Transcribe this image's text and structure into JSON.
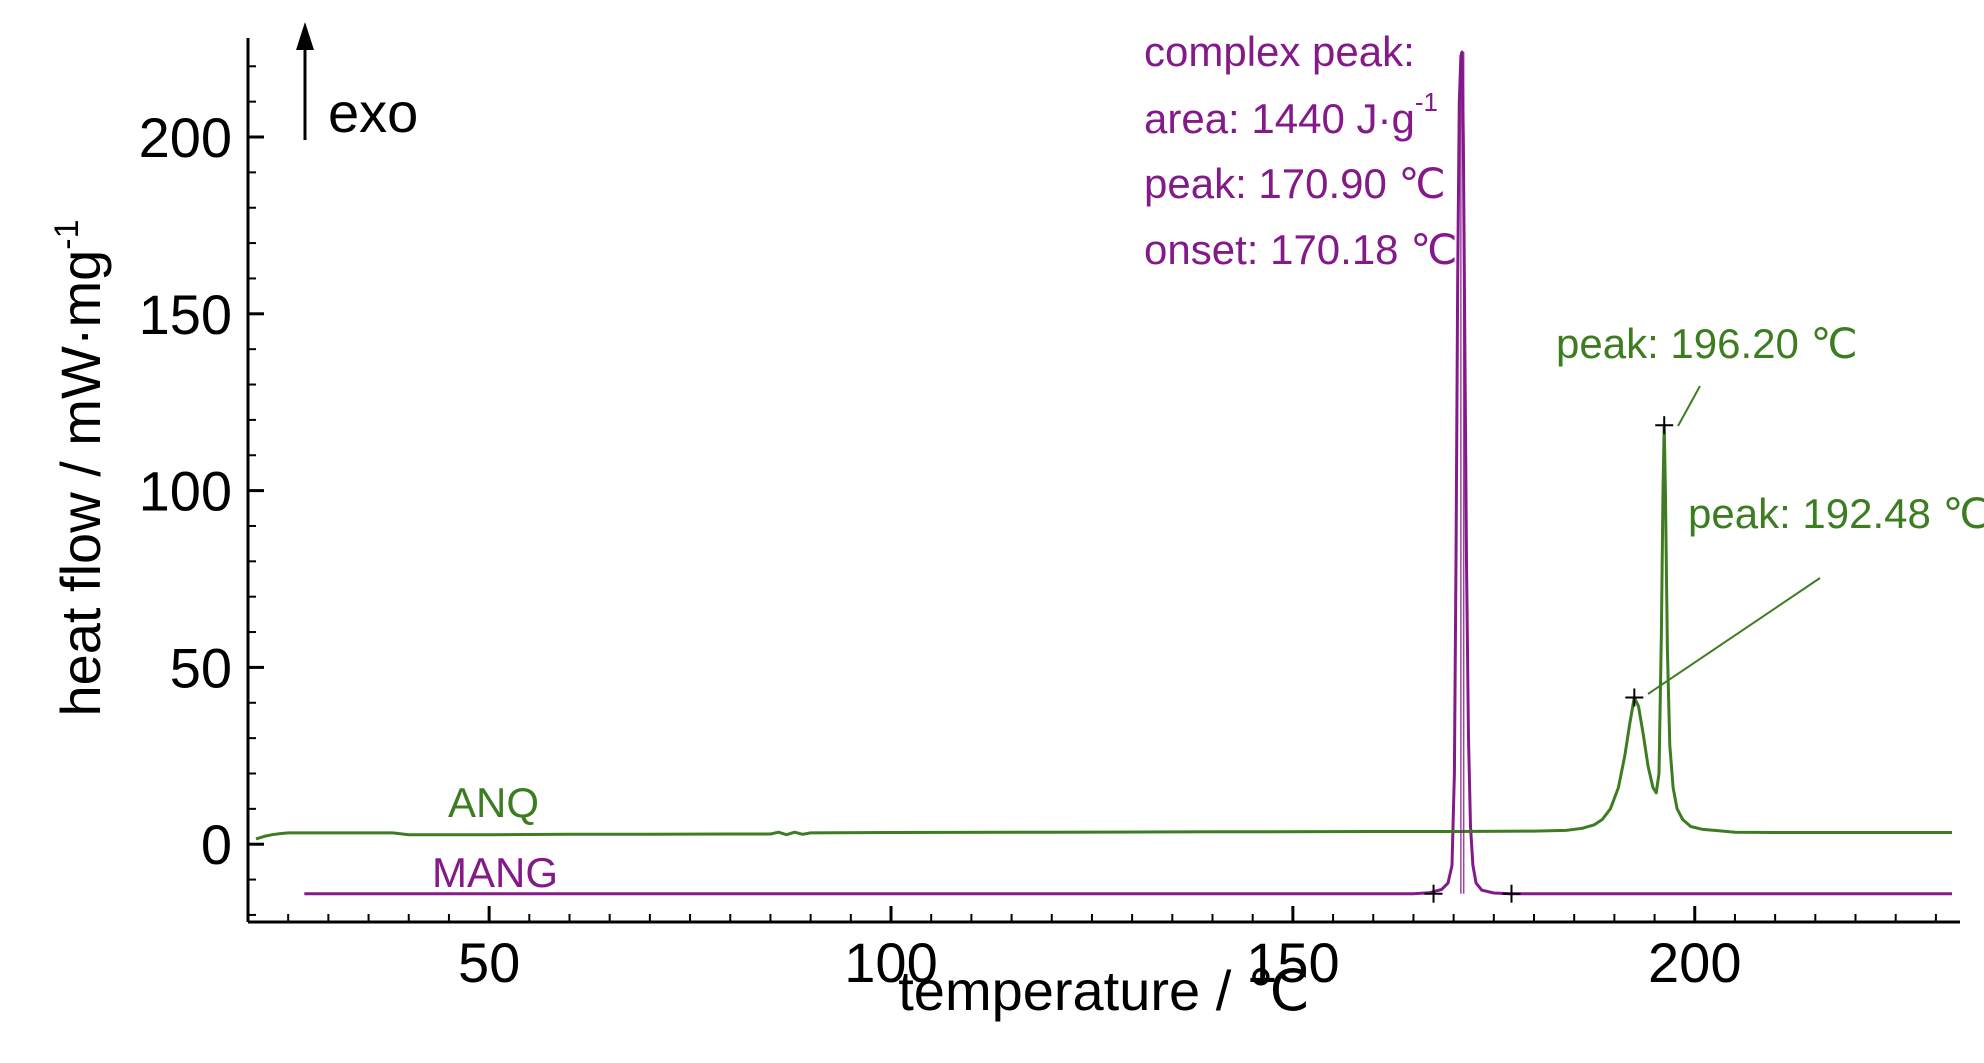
{
  "chart_data": {
    "type": "line",
    "xlabel": "temperature / ℃",
    "ylabel": "heat flow / mW·mg",
    "ylabel_superscript": "-1",
    "xlim": [
      20,
      233
    ],
    "ylim": [
      -22,
      228
    ],
    "x_ticks": [
      50,
      100,
      150,
      200
    ],
    "y_ticks": [
      0,
      50,
      100,
      150,
      200
    ],
    "x_tick_labels": [
      "50",
      "100",
      "150",
      "200"
    ],
    "y_tick_labels": [
      "0",
      "50",
      "100",
      "150",
      "200"
    ],
    "exo_label": "exo",
    "colors": {
      "ANQ": "#3d7d22",
      "MANG": "#84198a",
      "axis": "#000000"
    },
    "series": [
      {
        "name": "ANQ",
        "label": "ANQ",
        "color": "#3d7d22",
        "points": [
          [
            21.0,
            1.5
          ],
          [
            22.0,
            2.2
          ],
          [
            23.0,
            2.7
          ],
          [
            24.0,
            3.0
          ],
          [
            25.0,
            3.2
          ],
          [
            30.0,
            3.2
          ],
          [
            38.0,
            3.2
          ],
          [
            40.0,
            2.7
          ],
          [
            50.0,
            2.7
          ],
          [
            60.0,
            2.8
          ],
          [
            70.0,
            2.8
          ],
          [
            80.0,
            2.9
          ],
          [
            85.0,
            2.9
          ],
          [
            86.0,
            3.4
          ],
          [
            87.0,
            2.7
          ],
          [
            88.0,
            3.4
          ],
          [
            89.0,
            2.8
          ],
          [
            90.0,
            3.2
          ],
          [
            100.0,
            3.3
          ],
          [
            120.0,
            3.4
          ],
          [
            140.0,
            3.5
          ],
          [
            160.0,
            3.6
          ],
          [
            170.0,
            3.6
          ],
          [
            180.0,
            3.7
          ],
          [
            184.0,
            3.9
          ],
          [
            186.0,
            4.5
          ],
          [
            187.5,
            5.5
          ],
          [
            188.5,
            7.0
          ],
          [
            189.5,
            10.0
          ],
          [
            190.5,
            16.0
          ],
          [
            191.3,
            25.0
          ],
          [
            191.9,
            34.0
          ],
          [
            192.48,
            41.5
          ],
          [
            193.0,
            39.0
          ],
          [
            193.6,
            31.0
          ],
          [
            194.2,
            22.0
          ],
          [
            194.8,
            16.0
          ],
          [
            195.2,
            14.5
          ],
          [
            195.55,
            20.0
          ],
          [
            195.85,
            60.0
          ],
          [
            196.05,
            100.0
          ],
          [
            196.2,
            118.5
          ],
          [
            196.35,
            100.0
          ],
          [
            196.6,
            55.0
          ],
          [
            196.9,
            28.0
          ],
          [
            197.3,
            16.0
          ],
          [
            197.8,
            10.0
          ],
          [
            198.5,
            7.0
          ],
          [
            199.5,
            5.0
          ],
          [
            201.0,
            4.2
          ],
          [
            203.0,
            3.8
          ],
          [
            205.0,
            3.4
          ],
          [
            210.0,
            3.3
          ],
          [
            220.0,
            3.3
          ],
          [
            232.0,
            3.3
          ]
        ]
      },
      {
        "name": "MANG",
        "label": "MANG",
        "color": "#84198a",
        "points": [
          [
            27.0,
            -14.0
          ],
          [
            100.0,
            -14.0
          ],
          [
            150.0,
            -14.0
          ],
          [
            165.0,
            -14.0
          ],
          [
            167.0,
            -13.7
          ],
          [
            168.5,
            -12.8
          ],
          [
            169.3,
            -11.0
          ],
          [
            169.8,
            -6.0
          ],
          [
            170.1,
            20.0
          ],
          [
            170.3,
            80.0
          ],
          [
            170.5,
            160.0
          ],
          [
            170.7,
            210.0
          ],
          [
            170.9,
            223.0
          ],
          [
            171.05,
            224.0
          ],
          [
            171.2,
            200.0
          ],
          [
            171.4,
            140.0
          ],
          [
            171.6,
            80.0
          ],
          [
            171.85,
            30.0
          ],
          [
            172.1,
            5.0
          ],
          [
            172.4,
            -6.0
          ],
          [
            172.8,
            -11.0
          ],
          [
            173.5,
            -13.0
          ],
          [
            175.0,
            -13.8
          ],
          [
            177.0,
            -14.0
          ],
          [
            180.0,
            -14.0
          ],
          [
            200.0,
            -14.0
          ],
          [
            232.0,
            -14.0
          ]
        ]
      }
    ],
    "annotations": {
      "complex_peak": {
        "lines": [
          "complex peak:",
          "area: 1440 J·g",
          "peak: 170.90 ℃",
          "onset: 170.18 ℃"
        ],
        "area_superscript": "-1",
        "color": "#84198a"
      },
      "peak_196": {
        "text": "peak: 196.20 ℃",
        "color": "#3d7d22",
        "x": 196.2,
        "y": 118.5
      },
      "peak_192": {
        "text": "peak: 192.48 ℃",
        "color": "#3d7d22",
        "x": 192.48,
        "y": 41.5
      },
      "mang_baseline_markers": [
        167.5,
        177.2
      ],
      "mang_peak_verticals": [
        170.9
      ]
    }
  }
}
